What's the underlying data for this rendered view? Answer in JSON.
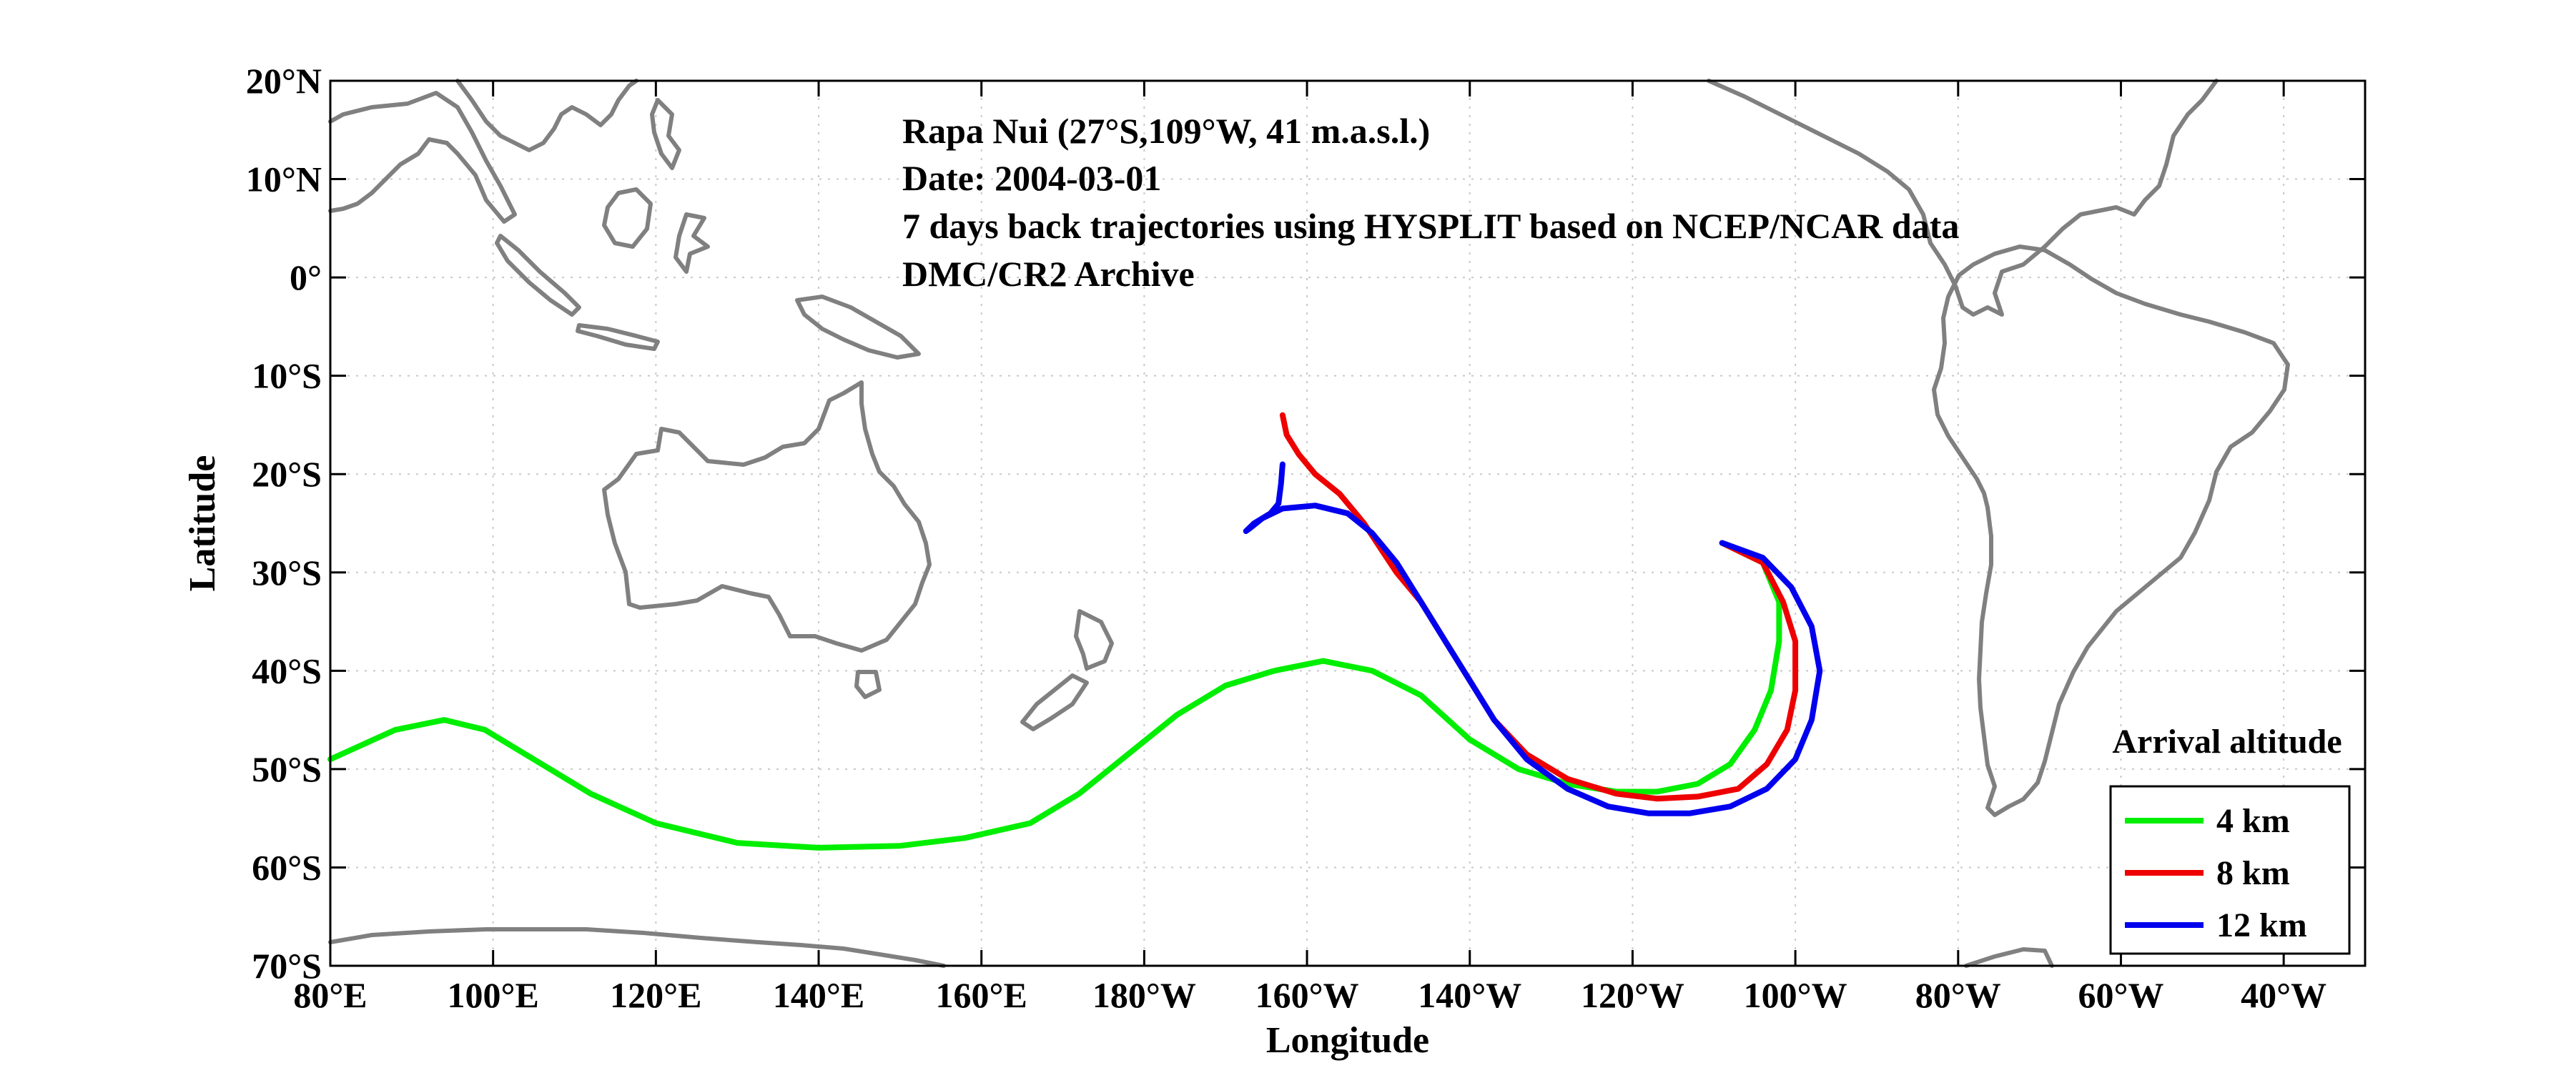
{
  "chart_data": {
    "type": "line",
    "map_projection": "equirectangular",
    "annotations": [
      "Rapa Nui (27°S,109°W, 41 m.a.s.l.)",
      "Date: 2004-03-01",
      "7 days back trajectories using HYSPLIT based on NCEP/NCAR data",
      "DMC/CR2 Archive"
    ],
    "xlabel": "Longitude",
    "ylabel": "Latitude",
    "xlim": [
      80,
      330
    ],
    "ylim": [
      -70,
      20
    ],
    "x_ticks": [
      {
        "value": 80,
        "label": "80°E"
      },
      {
        "value": 100,
        "label": "100°E"
      },
      {
        "value": 120,
        "label": "120°E"
      },
      {
        "value": 140,
        "label": "140°E"
      },
      {
        "value": 160,
        "label": "160°E"
      },
      {
        "value": 180,
        "label": "180°W"
      },
      {
        "value": 200,
        "label": "160°W"
      },
      {
        "value": 220,
        "label": "140°W"
      },
      {
        "value": 240,
        "label": "120°W"
      },
      {
        "value": 260,
        "label": "100°W"
      },
      {
        "value": 280,
        "label": "80°W"
      },
      {
        "value": 300,
        "label": "60°W"
      },
      {
        "value": 320,
        "label": "40°W"
      }
    ],
    "y_ticks": [
      {
        "value": 20,
        "label": "20°N"
      },
      {
        "value": 10,
        "label": "10°N"
      },
      {
        "value": 0,
        "label": "0°"
      },
      {
        "value": -10,
        "label": "10°S"
      },
      {
        "value": -20,
        "label": "20°S"
      },
      {
        "value": -30,
        "label": "30°S"
      },
      {
        "value": -40,
        "label": "40°S"
      },
      {
        "value": -50,
        "label": "50°S"
      },
      {
        "value": -60,
        "label": "60°S"
      },
      {
        "value": -70,
        "label": "70°S"
      }
    ],
    "grid": true,
    "legend": {
      "title": "Arrival altitude",
      "position": "bottom-right"
    },
    "series": [
      {
        "name": "4 km",
        "color": "#00ee00",
        "points": [
          [
            251,
            -27
          ],
          [
            256,
            -29
          ],
          [
            258,
            -33
          ],
          [
            258,
            -37
          ],
          [
            257,
            -42
          ],
          [
            255,
            -46
          ],
          [
            252,
            -49.5
          ],
          [
            248,
            -51.5
          ],
          [
            243,
            -52.3
          ],
          [
            238,
            -52.3
          ],
          [
            232,
            -51.5
          ],
          [
            226,
            -50
          ],
          [
            220,
            -47
          ],
          [
            214,
            -42.5
          ],
          [
            208,
            -40
          ],
          [
            202,
            -39
          ],
          [
            196,
            -40
          ],
          [
            190,
            -41.5
          ],
          [
            184,
            -44.5
          ],
          [
            178,
            -48.5
          ],
          [
            172,
            -52.5
          ],
          [
            166,
            -55.5
          ],
          [
            158,
            -57
          ],
          [
            150,
            -57.8
          ],
          [
            140,
            -58
          ],
          [
            130,
            -57.5
          ],
          [
            120,
            -55.5
          ],
          [
            112,
            -52.5
          ],
          [
            104,
            -48.5
          ],
          [
            99,
            -46
          ],
          [
            94,
            -45
          ],
          [
            88,
            -46
          ],
          [
            80,
            -49
          ]
        ]
      },
      {
        "name": "8 km",
        "color": "#ee0000",
        "points": [
          [
            251,
            -27
          ],
          [
            256,
            -29
          ],
          [
            258.5,
            -33
          ],
          [
            260,
            -37
          ],
          [
            260,
            -42
          ],
          [
            259,
            -46
          ],
          [
            256.5,
            -49.5
          ],
          [
            253,
            -52
          ],
          [
            248,
            -52.8
          ],
          [
            243,
            -53
          ],
          [
            238,
            -52.5
          ],
          [
            232,
            -51
          ],
          [
            227,
            -48.5
          ],
          [
            223,
            -45
          ],
          [
            220,
            -41
          ],
          [
            217,
            -37
          ],
          [
            214,
            -33
          ],
          [
            211,
            -30
          ],
          [
            209,
            -27.5
          ],
          [
            207,
            -25
          ],
          [
            204,
            -22
          ],
          [
            201,
            -20
          ],
          [
            199,
            -18
          ],
          [
            197.5,
            -16
          ],
          [
            197,
            -14
          ]
        ]
      },
      {
        "name": "12 km",
        "color": "#0000ee",
        "points": [
          [
            251,
            -27
          ],
          [
            256,
            -28.5
          ],
          [
            259.5,
            -31.5
          ],
          [
            262,
            -35.5
          ],
          [
            263,
            -40
          ],
          [
            262,
            -45
          ],
          [
            260,
            -49
          ],
          [
            256.5,
            -52
          ],
          [
            252,
            -53.8
          ],
          [
            247,
            -54.5
          ],
          [
            242,
            -54.5
          ],
          [
            237,
            -53.8
          ],
          [
            232,
            -52
          ],
          [
            227,
            -49
          ],
          [
            223,
            -45
          ],
          [
            220,
            -41
          ],
          [
            217,
            -37
          ],
          [
            214,
            -33
          ],
          [
            211,
            -29
          ],
          [
            208,
            -26
          ],
          [
            205,
            -24
          ],
          [
            201,
            -23.2
          ],
          [
            197,
            -23.5
          ],
          [
            194.5,
            -24.5
          ],
          [
            193,
            -25.5
          ],
          [
            192.5,
            -25.8
          ],
          [
            193.5,
            -25
          ],
          [
            195.5,
            -24
          ],
          [
            196.5,
            -23
          ],
          [
            196.8,
            -21
          ],
          [
            197,
            -19
          ]
        ]
      }
    ]
  }
}
